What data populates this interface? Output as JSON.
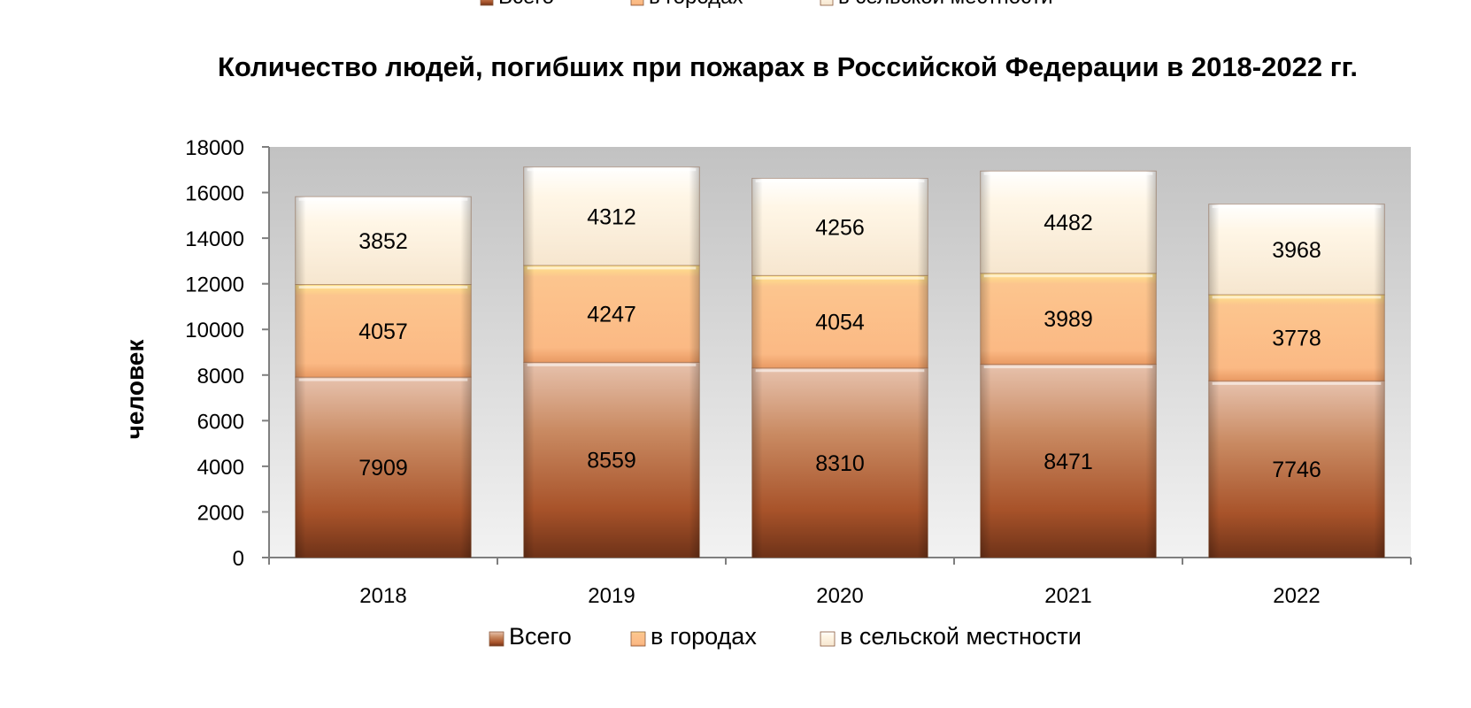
{
  "chart_data": {
    "type": "bar",
    "stacked": true,
    "title": "Количество людей, погибших при пожарах в Российской Федерации в 2018-2022 гг.",
    "ylabel": "человек",
    "xlabel": "",
    "ylim": [
      0,
      18000
    ],
    "yticks": [
      0,
      2000,
      4000,
      6000,
      8000,
      10000,
      12000,
      14000,
      16000,
      18000
    ],
    "categories": [
      "2018",
      "2019",
      "2020",
      "2021",
      "2022"
    ],
    "series": [
      {
        "name": "Всего",
        "values": [
          7909,
          8559,
          8310,
          8471,
          7746
        ],
        "color": "#a0522d"
      },
      {
        "name": "в городах",
        "values": [
          4057,
          4247,
          4054,
          3989,
          3778
        ],
        "color": "#fbbd86"
      },
      {
        "name": "в сельской местности",
        "values": [
          3852,
          4312,
          4256,
          4482,
          3968
        ],
        "color": "#fff4e0"
      }
    ],
    "legend": "bottom",
    "grid": false
  }
}
